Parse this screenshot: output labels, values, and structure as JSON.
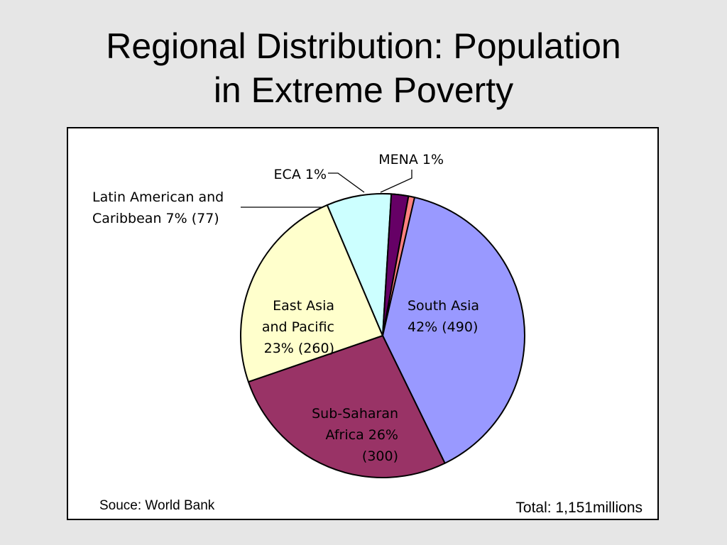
{
  "slide": {
    "title_line1": "Regional Distribution: Population",
    "title_line2": "in Extreme Poverty"
  },
  "chart_data": {
    "type": "pie",
    "unit": "millions",
    "slices": [
      {
        "key": "south_asia",
        "lines": [
          "South Asia",
          "42% (490)"
        ],
        "percent": 42,
        "value": 490,
        "color": "#9999ff"
      },
      {
        "key": "ssa",
        "lines": [
          "Sub-Saharan",
          "Africa 26%",
          "(300)"
        ],
        "percent": 26,
        "value": 300,
        "color": "#993366"
      },
      {
        "key": "eap",
        "lines": [
          "East Asia",
          "and Pacific",
          "23% (260)"
        ],
        "percent": 23,
        "value": 260,
        "color": "#ffffcc"
      },
      {
        "key": "lac",
        "lines": [
          "Latin American and",
          "Caribbean 7% (77)"
        ],
        "percent": 7,
        "value": 77,
        "color": "#ccffff"
      },
      {
        "key": "eca",
        "lines": [
          "ECA 1%"
        ],
        "percent": 1,
        "value": null,
        "color": "#660066"
      },
      {
        "key": "mena",
        "lines": [
          "MENA 1%"
        ],
        "percent": 1,
        "value": null,
        "color": "#ff8080"
      }
    ],
    "sweep_degrees": [
      154,
      97,
      86,
      26.5,
      7,
      2.5
    ],
    "source": "Souce: World Bank",
    "total": "Total: 1,151millions"
  }
}
